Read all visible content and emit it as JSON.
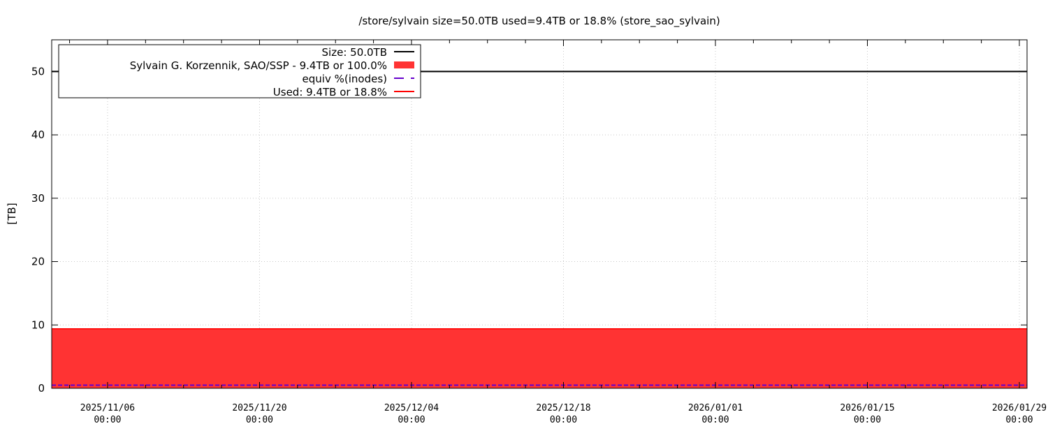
{
  "chart_data": {
    "type": "area",
    "title": "/store/sylvain size=50.0TB used=9.4TB or 18.8% (store_sao_sylvain)",
    "xlabel": "",
    "ylabel": "[TB]",
    "xlim": [
      "2025-10-31T20:30",
      "2026-01-29T17:00"
    ],
    "ylim": [
      0,
      55
    ],
    "yticks": [
      0,
      10,
      20,
      30,
      40,
      50
    ],
    "xticks": [
      {
        "date": "2025-11-06T00:00",
        "label1": "2025/11/06",
        "label2": "00:00"
      },
      {
        "date": "2025-11-20T00:00",
        "label1": "2025/11/20",
        "label2": "00:00"
      },
      {
        "date": "2025-12-04T00:00",
        "label1": "2025/12/04",
        "label2": "00:00"
      },
      {
        "date": "2025-12-18T00:00",
        "label1": "2025/12/18",
        "label2": "00:00"
      },
      {
        "date": "2026-01-01T00:00",
        "label1": "2026/01/01",
        "label2": "00:00"
      },
      {
        "date": "2026-01-15T00:00",
        "label1": "2026/01/15",
        "label2": "00:00"
      },
      {
        "date": "2026-01-29T00:00",
        "label1": "2026/01/29",
        "label2": "00:00"
      }
    ],
    "grid": true,
    "legend_placement": "top-left",
    "series": [
      {
        "name": "Size: 50.0TB",
        "kind": "line",
        "color": "#000000",
        "x": [
          "2025-10-31T20:30",
          "2026-01-29T17:00"
        ],
        "y": [
          50.0,
          50.0
        ]
      },
      {
        "name": "Sylvain G. Korzennik, SAO/SSP - 9.4TB or 100.0%",
        "kind": "area",
        "color": "#ff3333",
        "x": [
          "2025-10-31T20:30",
          "2026-01-29T17:00"
        ],
        "y": [
          9.4,
          9.4
        ]
      },
      {
        "name": "equiv %(inodes)",
        "kind": "dashed-line",
        "color": "#6600cc",
        "x": [
          "2025-10-31T20:30",
          "2026-01-29T17:00"
        ],
        "y": [
          0.5,
          0.5
        ]
      },
      {
        "name": "Used: 9.4TB or 18.8%",
        "kind": "line",
        "color": "#ff0000",
        "x": [
          "2025-10-31T20:30",
          "2026-01-29T17:00"
        ],
        "y": [
          9.4,
          9.4
        ]
      }
    ]
  }
}
